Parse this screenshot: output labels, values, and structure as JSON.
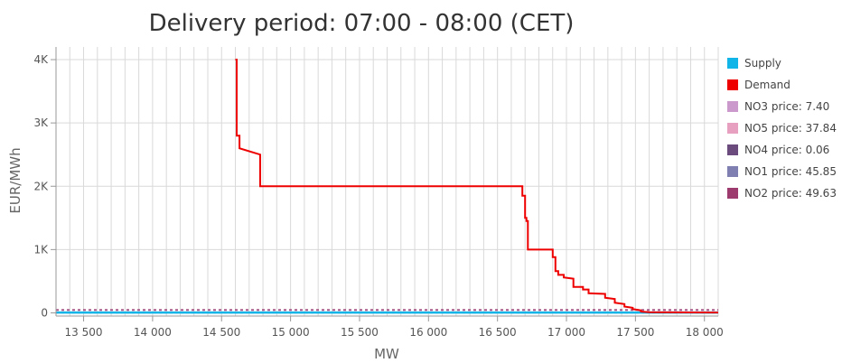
{
  "chart_data": {
    "type": "line",
    "title": "Delivery period: 07:00 - 08:00 (CET)",
    "xlabel": "MW",
    "ylabel": "EUR/MWh",
    "xlim": [
      13300,
      18100
    ],
    "ylim": [
      -50,
      4200
    ],
    "x_ticks": [
      13500,
      14000,
      14500,
      15000,
      15500,
      16000,
      16500,
      17000,
      17500,
      18000
    ],
    "x_tick_labels": [
      "13 500",
      "14 000",
      "14 500",
      "15 000",
      "15 500",
      "16 000",
      "16 500",
      "17 000",
      "17 500",
      "18 000"
    ],
    "y_ticks": [
      0,
      1000,
      2000,
      3000,
      4000
    ],
    "y_tick_labels": [
      "0",
      "1K",
      "2K",
      "3K",
      "4K"
    ],
    "grid": true,
    "legend_position": "right",
    "series": [
      {
        "name": "Supply",
        "color": "#12b5e8",
        "points": [
          [
            13300,
            5
          ],
          [
            18100,
            5
          ]
        ]
      },
      {
        "name": "Demand",
        "color": "#ee0000",
        "points": [
          [
            14600,
            4000
          ],
          [
            14610,
            4000
          ],
          [
            14610,
            2800
          ],
          [
            14630,
            2800
          ],
          [
            14630,
            2600
          ],
          [
            14780,
            2500
          ],
          [
            14780,
            2000
          ],
          [
            16680,
            2000
          ],
          [
            16680,
            1850
          ],
          [
            16700,
            1850
          ],
          [
            16700,
            1500
          ],
          [
            16710,
            1500
          ],
          [
            16710,
            1450
          ],
          [
            16720,
            1450
          ],
          [
            16720,
            1000
          ],
          [
            16900,
            1000
          ],
          [
            16900,
            880
          ],
          [
            16920,
            880
          ],
          [
            16920,
            660
          ],
          [
            16940,
            660
          ],
          [
            16940,
            600
          ],
          [
            16980,
            600
          ],
          [
            16980,
            560
          ],
          [
            17050,
            540
          ],
          [
            17050,
            410
          ],
          [
            17120,
            410
          ],
          [
            17120,
            370
          ],
          [
            17160,
            370
          ],
          [
            17160,
            310
          ],
          [
            17280,
            300
          ],
          [
            17280,
            240
          ],
          [
            17350,
            220
          ],
          [
            17350,
            160
          ],
          [
            17420,
            140
          ],
          [
            17420,
            100
          ],
          [
            17480,
            80
          ],
          [
            17480,
            60
          ],
          [
            17540,
            40
          ],
          [
            17540,
            20
          ],
          [
            17600,
            10
          ],
          [
            18100,
            5
          ]
        ]
      },
      {
        "name": "NO3 price: 7.40",
        "color": "#cc99cc",
        "value": 7.4
      },
      {
        "name": "NO5 price: 37.84",
        "color": "#e8a0c0",
        "value": 37.84
      },
      {
        "name": "NO4 price: 0.06",
        "color": "#6b4a7d",
        "value": 0.06
      },
      {
        "name": "NO1 price: 45.85",
        "color": "#7f7fb2",
        "value": 45.85
      },
      {
        "name": "NO2 price: 49.63",
        "color": "#9e3b6e",
        "value": 49.63
      }
    ]
  }
}
